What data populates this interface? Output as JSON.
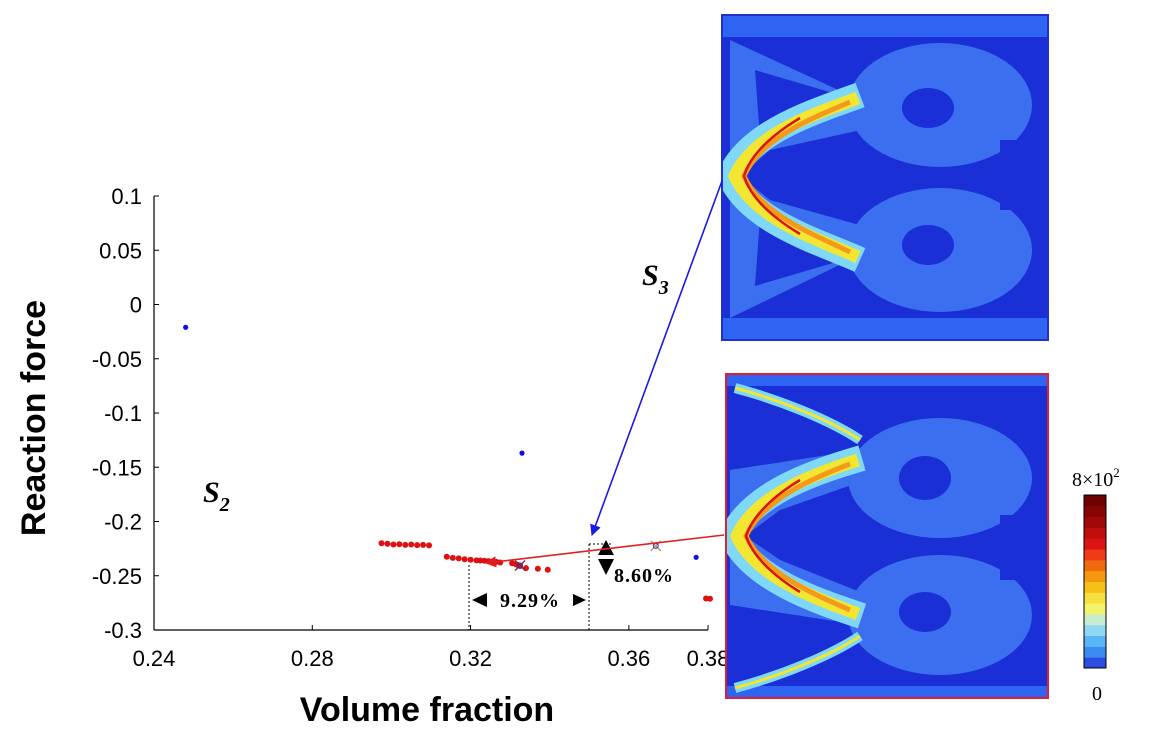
{
  "chart_data": {
    "type": "scatter",
    "xlabel": "Volume fraction",
    "ylabel": "Reaction force",
    "xlim": [
      0.24,
      0.38
    ],
    "ylim": [
      -0.3,
      0.1
    ],
    "x_ticks": [
      "0.24",
      "0.28",
      "0.32",
      "0.36",
      "0.38"
    ],
    "x_tick_values": [
      0.24,
      0.28,
      0.32,
      0.36,
      0.38
    ],
    "y_ticks": [
      "0.1",
      "0.05",
      "0",
      "-0.05",
      "-0.1",
      "-0.15",
      "-0.2",
      "-0.25",
      "-0.3"
    ],
    "y_tick_values": [
      0.1,
      0.05,
      0,
      -0.05,
      -0.1,
      -0.15,
      -0.2,
      -0.25,
      -0.3
    ],
    "grid": false,
    "series": [
      {
        "color": "#0a10e8",
        "points": [
          [
            0.248,
            -0.021
          ],
          [
            0.333,
            -0.137
          ],
          [
            0.377,
            -0.233
          ]
        ]
      },
      {
        "color": "#e01010",
        "points": [
          [
            0.2975,
            -0.22
          ],
          [
            0.299,
            -0.2205
          ],
          [
            0.3005,
            -0.2212
          ],
          [
            0.302,
            -0.221
          ],
          [
            0.3035,
            -0.2215
          ],
          [
            0.305,
            -0.2212
          ],
          [
            0.3065,
            -0.2218
          ],
          [
            0.308,
            -0.2215
          ],
          [
            0.3095,
            -0.222
          ],
          [
            0.314,
            -0.2325
          ],
          [
            0.3155,
            -0.2335
          ],
          [
            0.317,
            -0.234
          ],
          [
            0.3185,
            -0.2348
          ],
          [
            0.32,
            -0.2352
          ],
          [
            0.3215,
            -0.2358
          ],
          [
            0.3225,
            -0.236
          ],
          [
            0.3235,
            -0.2362
          ],
          [
            0.3245,
            -0.2365
          ],
          [
            0.3255,
            -0.2368
          ],
          [
            0.3265,
            -0.2372
          ],
          [
            0.3275,
            -0.2378
          ],
          [
            0.3305,
            -0.2385
          ],
          [
            0.3315,
            -0.2395
          ],
          [
            0.332,
            -0.2402
          ],
          [
            0.3325,
            -0.241
          ],
          [
            0.334,
            -0.243
          ],
          [
            0.337,
            -0.2435
          ],
          [
            0.3395,
            -0.2445
          ],
          [
            0.3795,
            -0.271
          ],
          [
            0.3805,
            -0.2712
          ]
        ]
      }
    ],
    "annotations": {
      "s2_base": "S",
      "s2_sub": "2",
      "s3_base": "S",
      "s3_sub": "3",
      "dx_label": "9.29%",
      "dy_label": "8.60%",
      "marker_s3": [
        0.3668,
        -0.2225
      ],
      "marker_s2": [
        0.3325,
        -0.2405
      ],
      "arrow_blue_color": "#1a1ae6",
      "arrow_red_color": "#e02020"
    },
    "colorbar": {
      "max_label_base": "8×10",
      "max_label_exp": "2",
      "min_label": "0",
      "colors": [
        "#2b4de0",
        "#3b8cf0",
        "#5ab4f8",
        "#8fd8f4",
        "#c8ecd0",
        "#f3f36b",
        "#f6e040",
        "#f5c018",
        "#f59a10",
        "#f26a10",
        "#f03a18",
        "#dc1414",
        "#bf0e0e",
        "#a10808",
        "#860404",
        "#6e0202"
      ]
    },
    "insets": [
      {
        "frame_color": "#2030c8"
      },
      {
        "frame_color": "#e02030"
      }
    ]
  },
  "palette": {
    "field_blue": "#1a2fd6",
    "mid_blue": "#2f63f2",
    "structure_blue": "#3c6ff0",
    "cyan": "#7fd8f8",
    "yellow": "#f2e632",
    "orange": "#f39a1a",
    "red": "#d81414"
  }
}
